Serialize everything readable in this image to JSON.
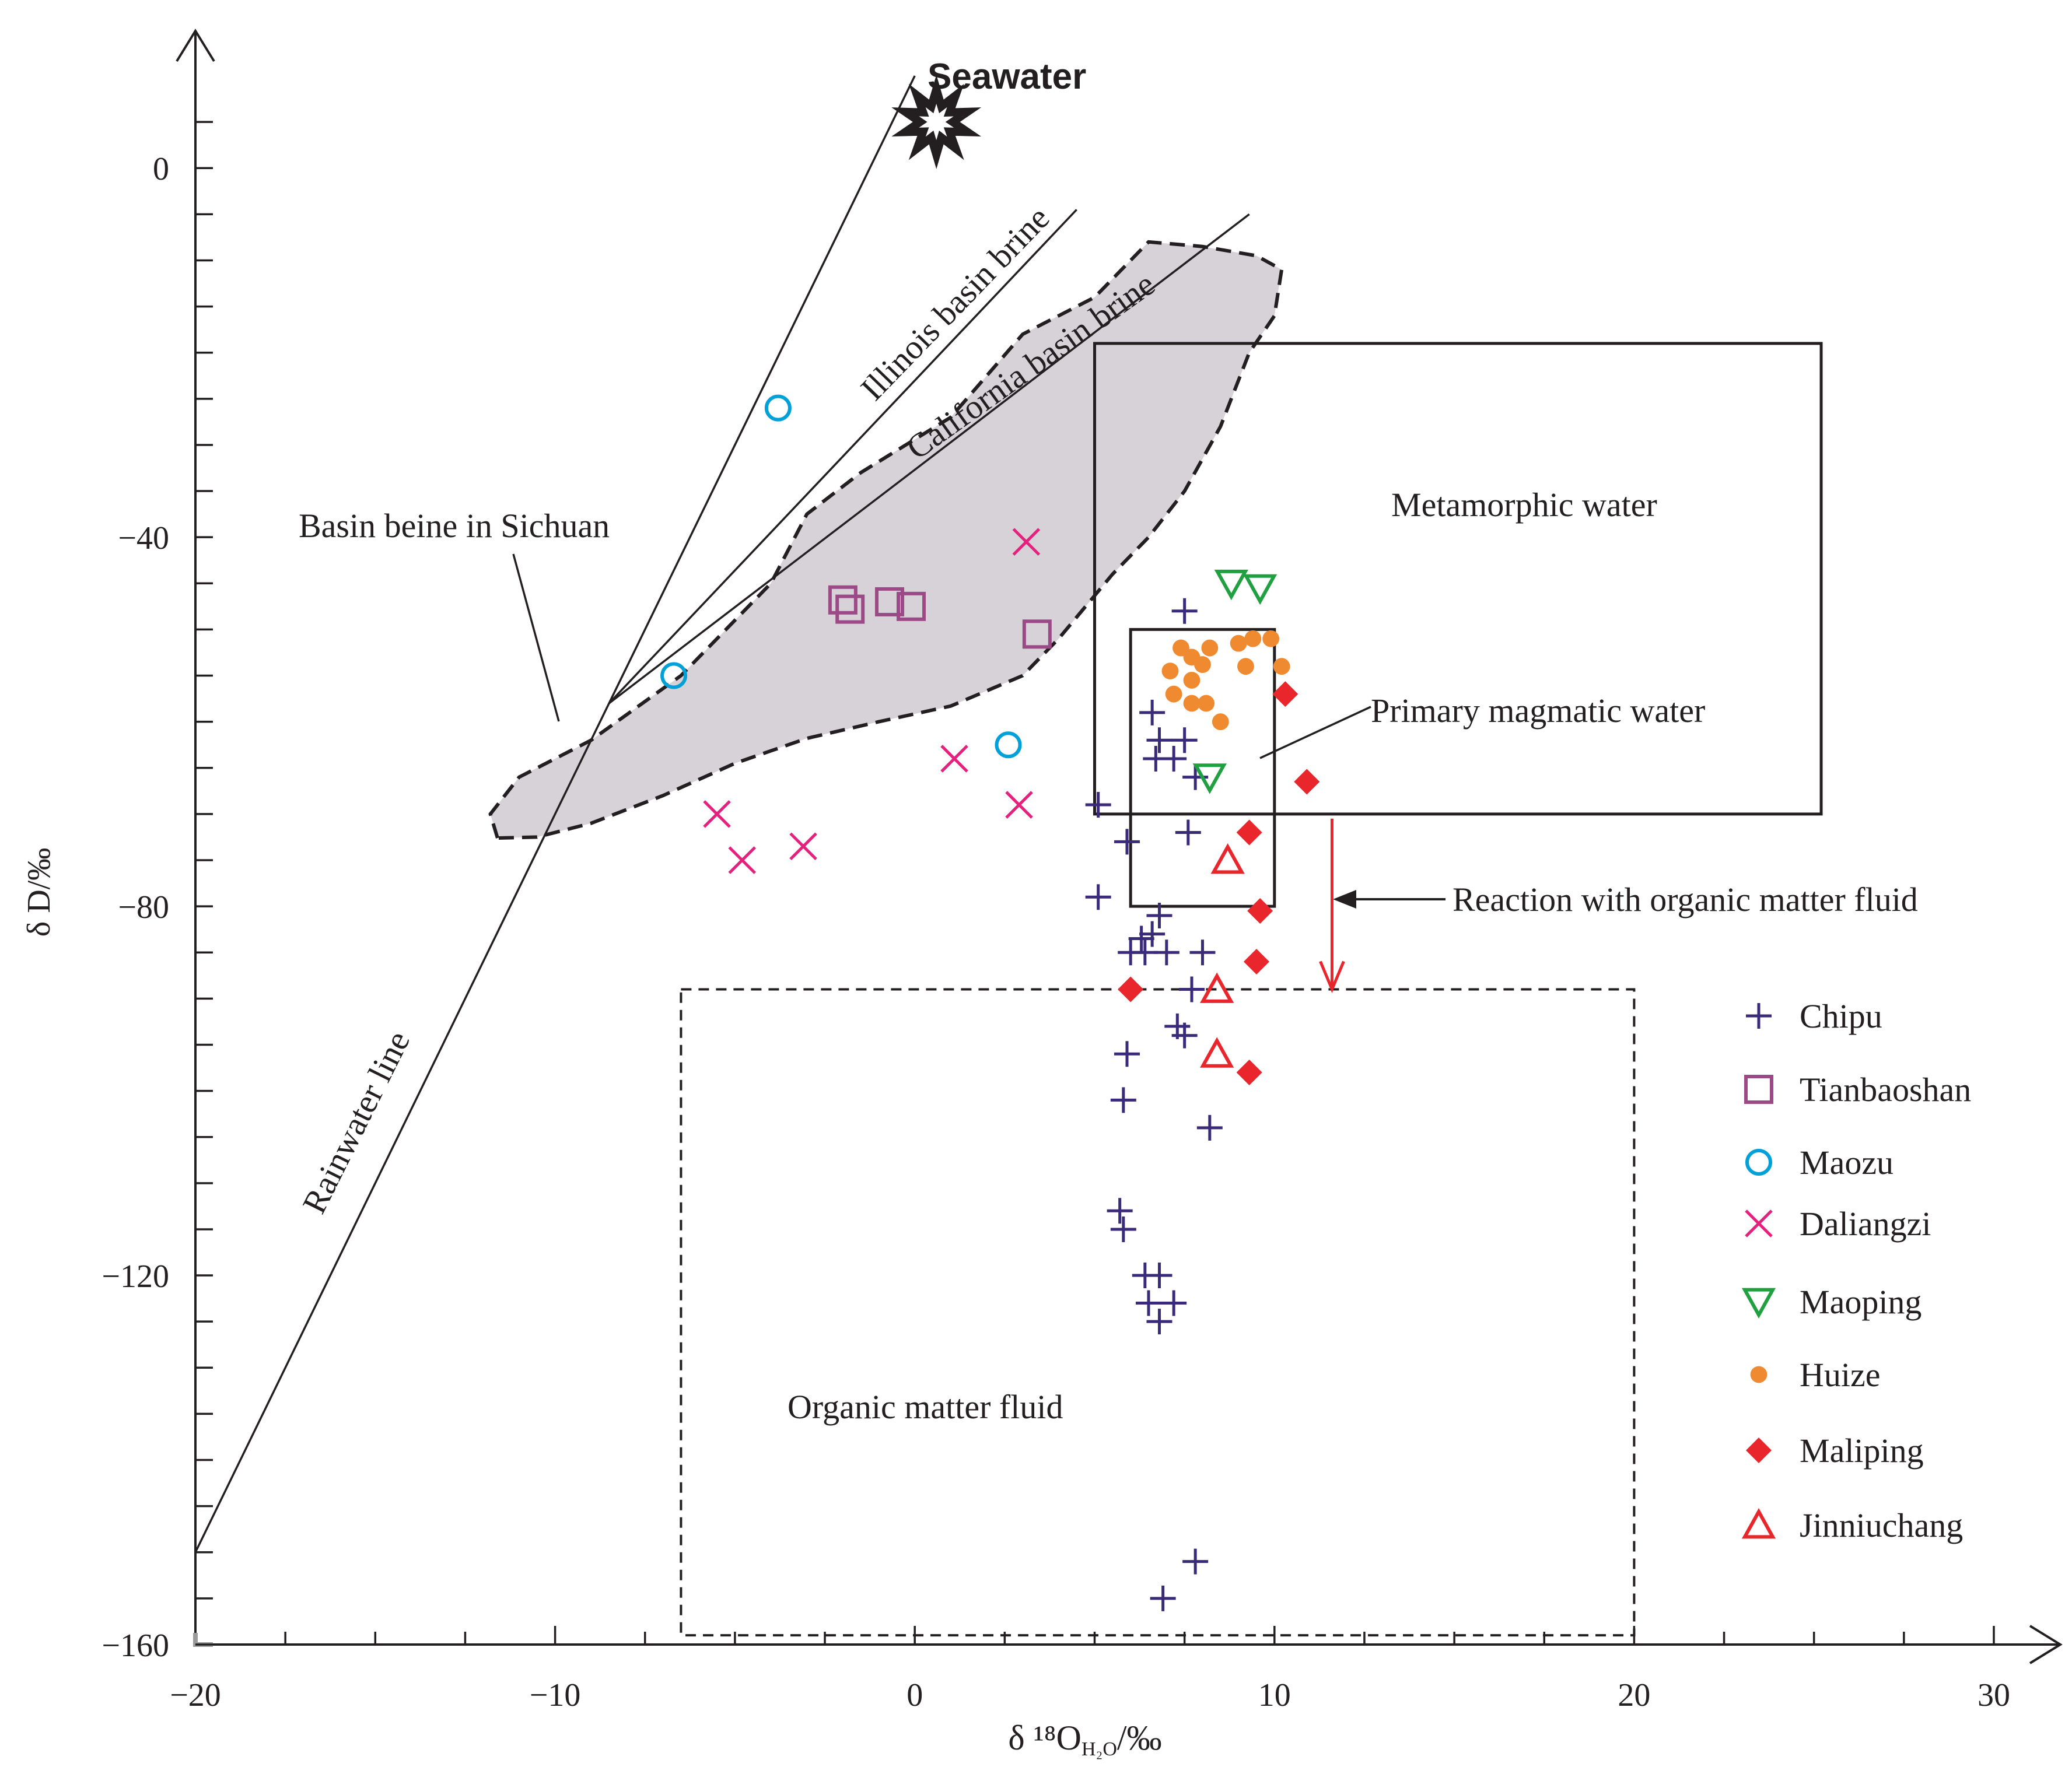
{
  "chart_data": {
    "type": "scatter",
    "title": "",
    "xlabel": "δ ¹⁸O",
    "xlabel_sub": "H₂O",
    "xlabel_unit": "/‰",
    "ylabel": "δ D/‰",
    "xlim": [
      -20,
      30
    ],
    "ylim": [
      -160,
      10
    ],
    "x_ticks": [
      -20,
      -10,
      0,
      10,
      20,
      30
    ],
    "y_ticks": [
      0,
      -40,
      -80,
      -120,
      -160
    ],
    "x_tick_labels": [
      "−20",
      "−10",
      "0",
      "10",
      "20",
      "30"
    ],
    "y_tick_labels": [
      "0",
      "−40",
      "−80",
      "−120",
      "−160"
    ],
    "grid": false,
    "legend_position": "right",
    "annotations": {
      "seawater": "Seawater",
      "illinois": "Illinois basin brine",
      "california": "California basin brine",
      "sichuan": "Basin beine in Sichuan",
      "metamorphic": "Metamorphic water",
      "magmatic": "Primary magmatic water",
      "reaction": "Reaction with organic matter fluid",
      "organic": "Organic matter fluid",
      "rainwater": "Rainwater line"
    },
    "lines": {
      "rainwater": [
        [
          -20,
          -150
        ],
        [
          0,
          10
        ]
      ],
      "illinois": [
        [
          -8.5,
          -58
        ],
        [
          4.5,
          -4.5
        ]
      ],
      "california": [
        [
          -8.5,
          -58
        ],
        [
          9.3,
          -5
        ]
      ]
    },
    "seawater_point": [
      0.6,
      5
    ],
    "regions": {
      "sichuan_polygon": [
        [
          -11.6,
          -72.6
        ],
        [
          -11.8,
          -70
        ],
        [
          -11,
          -66
        ],
        [
          -9,
          -62
        ],
        [
          -6.5,
          -55
        ],
        [
          -4,
          -45
        ],
        [
          -3,
          -37.5
        ],
        [
          -1.5,
          -33
        ],
        [
          1,
          -27
        ],
        [
          3,
          -18
        ],
        [
          5,
          -14
        ],
        [
          6.5,
          -8
        ],
        [
          8,
          -8.5
        ],
        [
          9.5,
          -9.5
        ],
        [
          10.2,
          -11
        ],
        [
          10,
          -16
        ],
        [
          9.3,
          -20
        ],
        [
          8.5,
          -28
        ],
        [
          7.5,
          -35
        ],
        [
          6.5,
          -40
        ],
        [
          5.5,
          -44
        ],
        [
          4,
          -51
        ],
        [
          3,
          -55
        ],
        [
          1,
          -58.3
        ],
        [
          -1,
          -60
        ],
        [
          -3,
          -61.8
        ],
        [
          -5,
          -64.5
        ],
        [
          -7,
          -68
        ],
        [
          -9,
          -71
        ],
        [
          -10.5,
          -72.5
        ]
      ],
      "metamorphic_box": {
        "x": [
          5,
          25.2
        ],
        "y": [
          -70,
          -19
        ]
      },
      "magmatic_box": {
        "x": [
          6,
          10
        ],
        "y": [
          -80,
          -50
        ]
      },
      "organic_box": {
        "x": [
          -6.5,
          20
        ],
        "y": [
          -159,
          -89
        ]
      }
    },
    "reaction_arrow": {
      "x": 11.6,
      "from": -70.5,
      "to": -89
    },
    "series": [
      {
        "name": "Chipu",
        "marker": "plus",
        "color": "#3a2a7a",
        "points": [
          [
            7.5,
            -48
          ],
          [
            6.6,
            -59
          ],
          [
            6.8,
            -62
          ],
          [
            7.5,
            -62
          ],
          [
            6.7,
            -64
          ],
          [
            7.2,
            -64
          ],
          [
            7.8,
            -66
          ],
          [
            5.1,
            -69
          ],
          [
            5.9,
            -73
          ],
          [
            7.6,
            -72
          ],
          [
            5.1,
            -79
          ],
          [
            6.8,
            -81
          ],
          [
            6.6,
            -83
          ],
          [
            6.3,
            -83.5
          ],
          [
            6.0,
            -85
          ],
          [
            6.4,
            -85
          ],
          [
            7.0,
            -85
          ],
          [
            8.0,
            -85
          ],
          [
            7.7,
            -89
          ],
          [
            7.3,
            -93
          ],
          [
            7.5,
            -94
          ],
          [
            5.9,
            -96
          ],
          [
            5.8,
            -101
          ],
          [
            8.2,
            -104
          ],
          [
            5.7,
            -113
          ],
          [
            5.8,
            -115
          ],
          [
            6.4,
            -120
          ],
          [
            6.8,
            -120
          ],
          [
            6.5,
            -123
          ],
          [
            7.2,
            -123
          ],
          [
            6.8,
            -125
          ],
          [
            7.8,
            -151
          ],
          [
            6.9,
            -155
          ]
        ]
      },
      {
        "name": "Tianbaoshan",
        "marker": "square",
        "color": "#9b4a87",
        "points": [
          [
            -2.0,
            -46.8
          ],
          [
            -1.8,
            -47.8
          ],
          [
            -0.7,
            -47
          ],
          [
            -0.1,
            -47.5
          ],
          [
            3.4,
            -50.5
          ]
        ]
      },
      {
        "name": "Maozu",
        "marker": "circle",
        "color": "#00a0d8",
        "points": [
          [
            -3.8,
            -26
          ],
          [
            -6.7,
            -55
          ],
          [
            2.6,
            -62.5
          ]
        ]
      },
      {
        "name": "Daliangzi",
        "marker": "x",
        "color": "#e6207d",
        "points": [
          [
            3.1,
            -40.5
          ],
          [
            1.1,
            -64
          ],
          [
            2.9,
            -69
          ],
          [
            -5.5,
            -70
          ],
          [
            -4.8,
            -75
          ],
          [
            -3.1,
            -73.5
          ]
        ]
      },
      {
        "name": "Maoping",
        "marker": "tri-down",
        "color": "#20a040",
        "points": [
          [
            8.8,
            -45
          ],
          [
            9.6,
            -45.5
          ],
          [
            8.2,
            -66
          ]
        ]
      },
      {
        "name": "Huize",
        "marker": "dot",
        "color": "#f08a30",
        "points": [
          [
            7.4,
            -52
          ],
          [
            8.2,
            -52
          ],
          [
            9.0,
            -51.5
          ],
          [
            9.4,
            -51
          ],
          [
            9.9,
            -51
          ],
          [
            7.7,
            -53
          ],
          [
            8.0,
            -53.8
          ],
          [
            7.1,
            -54.5
          ],
          [
            9.2,
            -54
          ],
          [
            10.2,
            -54
          ],
          [
            7.7,
            -55.5
          ],
          [
            7.2,
            -57
          ],
          [
            7.7,
            -58
          ],
          [
            8.1,
            -58
          ],
          [
            8.5,
            -60
          ]
        ]
      },
      {
        "name": "Maliping",
        "marker": "diamond",
        "color": "#e8262b",
        "points": [
          [
            10.3,
            -57
          ],
          [
            10.9,
            -66.5
          ],
          [
            9.3,
            -72
          ],
          [
            9.6,
            -80.5
          ],
          [
            9.5,
            -86
          ],
          [
            6.0,
            -89
          ],
          [
            9.3,
            -98
          ]
        ]
      },
      {
        "name": "Jinniuchang",
        "marker": "tri-up",
        "color": "#e8262b",
        "points": [
          [
            8.7,
            -75
          ],
          [
            8.4,
            -89
          ],
          [
            8.4,
            -96
          ]
        ]
      }
    ]
  }
}
